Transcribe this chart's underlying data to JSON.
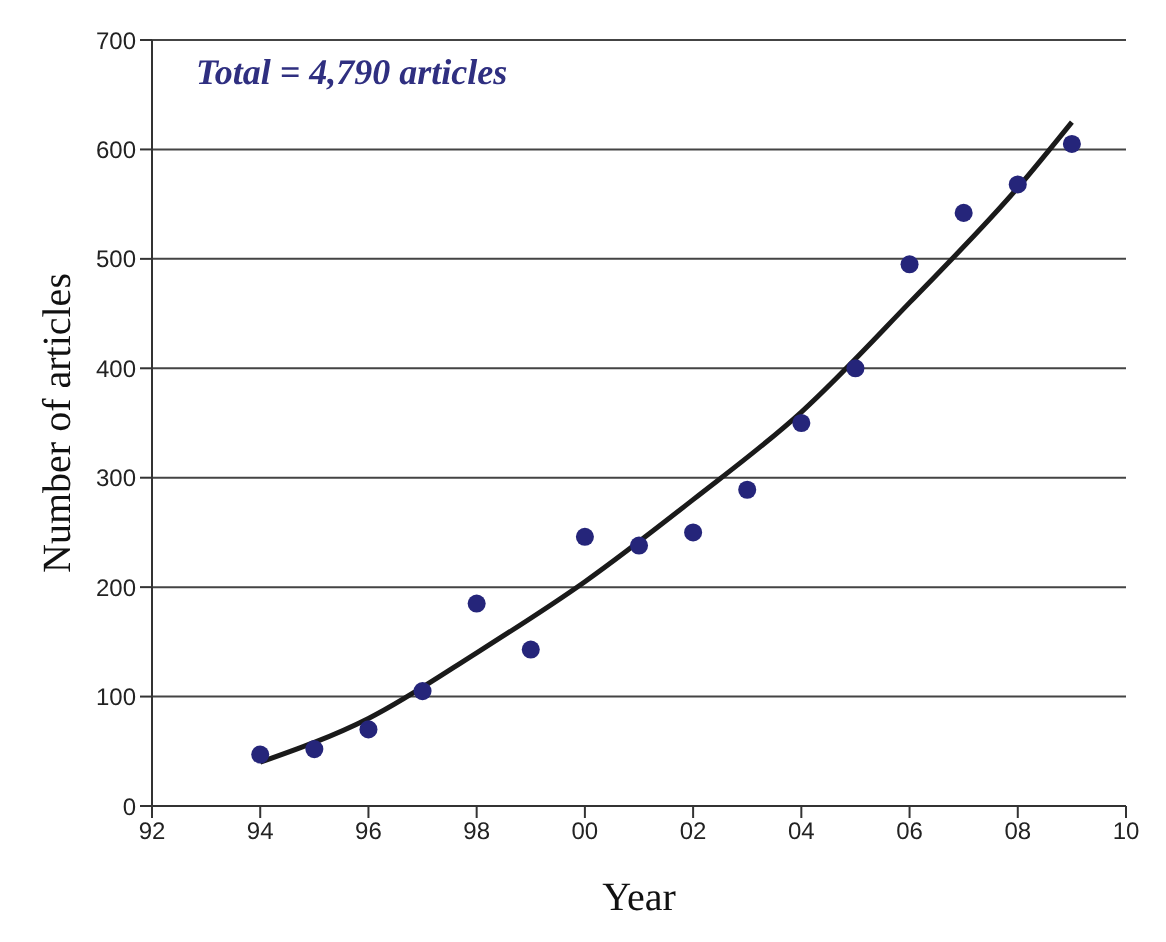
{
  "chart_data": {
    "type": "scatter",
    "xlabel": "Year",
    "ylabel": "Number of articles",
    "annotations": [
      "Total = 4,790 articles"
    ],
    "xlim": [
      1992,
      2010
    ],
    "xticks": [
      {
        "value": 1992,
        "label": "92"
      },
      {
        "value": 1994,
        "label": "94"
      },
      {
        "value": 1996,
        "label": "96"
      },
      {
        "value": 1998,
        "label": "98"
      },
      {
        "value": 2000,
        "label": "00"
      },
      {
        "value": 2002,
        "label": "02"
      },
      {
        "value": 2004,
        "label": "04"
      },
      {
        "value": 2006,
        "label": "06"
      },
      {
        "value": 2008,
        "label": "08"
      },
      {
        "value": 2010,
        "label": "10"
      }
    ],
    "ylim": [
      0,
      700
    ],
    "yticks": [
      0,
      100,
      200,
      300,
      400,
      500,
      600,
      700
    ],
    "grid": "y",
    "series": [
      {
        "type": "scatter",
        "color": "#25257a",
        "marker": "circle",
        "x": [
          1994,
          1995,
          1996,
          1997,
          1998,
          1999,
          2000,
          2001,
          2002,
          2003,
          2004,
          2005,
          2006,
          2007,
          2008,
          2009
        ],
        "values": [
          47,
          52,
          70,
          105,
          185,
          143,
          246,
          238,
          250,
          289,
          350,
          400,
          495,
          542,
          568,
          605
        ]
      },
      {
        "type": "line",
        "color": "#1a1a1a",
        "marker": "none",
        "line_style": "solid",
        "x": [
          1994,
          1996,
          1998,
          2000,
          2002,
          2004,
          2006,
          2008,
          2009
        ],
        "values": [
          40,
          80,
          140,
          205,
          280,
          360,
          460,
          565,
          625
        ]
      }
    ]
  }
}
